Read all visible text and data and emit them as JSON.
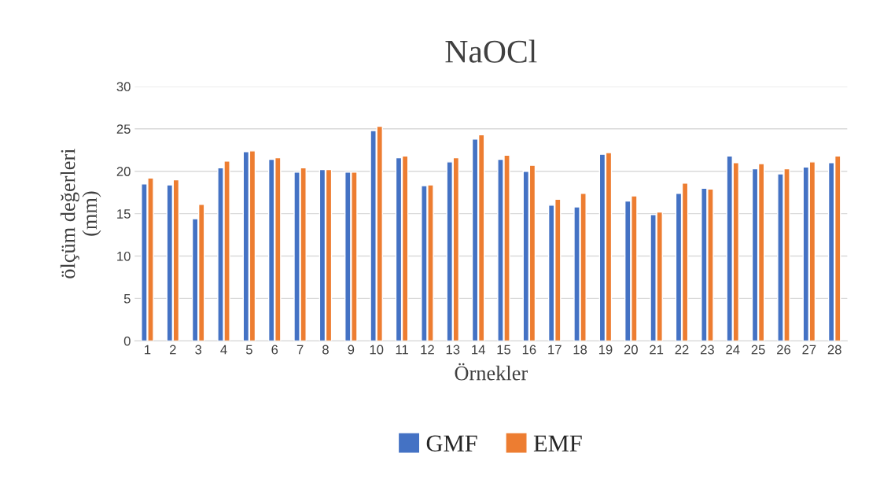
{
  "chart_data": {
    "type": "bar",
    "title": "NaOCl",
    "xlabel": "Örnekler",
    "ylabel": "ölçüm değerleri\n(mm)",
    "categories": [
      "1",
      "2",
      "3",
      "4",
      "5",
      "6",
      "7",
      "8",
      "9",
      "10",
      "11",
      "12",
      "13",
      "14",
      "15",
      "16",
      "17",
      "18",
      "19",
      "20",
      "21",
      "22",
      "23",
      "24",
      "25",
      "26",
      "27",
      "28"
    ],
    "series": [
      {
        "name": "GMF",
        "color": "#4472c4",
        "values": [
          18.5,
          18.4,
          14.4,
          20.4,
          22.3,
          21.4,
          19.9,
          20.2,
          19.9,
          24.8,
          21.6,
          18.3,
          21.1,
          23.8,
          21.4,
          20.0,
          16.0,
          15.8,
          22.0,
          16.5,
          14.9,
          17.4,
          18.0,
          21.8,
          20.3,
          19.7,
          20.5,
          21.0
        ]
      },
      {
        "name": "EMF",
        "color": "#ed7d31",
        "values": [
          19.2,
          19.0,
          16.1,
          21.2,
          22.4,
          21.6,
          20.4,
          20.2,
          19.9,
          25.3,
          21.8,
          18.4,
          21.6,
          24.3,
          21.9,
          20.7,
          16.7,
          17.4,
          22.2,
          17.1,
          15.2,
          18.6,
          17.9,
          21.0,
          20.9,
          20.3,
          21.1,
          21.8
        ]
      }
    ],
    "ylim": [
      0,
      30
    ],
    "yticks": [
      0,
      5,
      10,
      15,
      20,
      25,
      30
    ],
    "grid": "y",
    "legend": "bottom"
  }
}
